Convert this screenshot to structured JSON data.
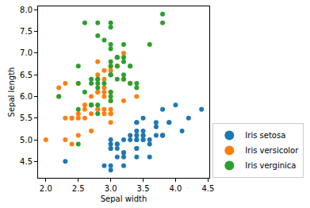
{
  "chart_data": {
    "type": "scatter",
    "x_label": "Sepal width",
    "y_label": "Sepal length",
    "xlim": [
      1.88,
      4.52
    ],
    "ylim": [
      4.12,
      8.08
    ],
    "xticks": [
      {
        "value": 2,
        "label": "2.0"
      },
      2.5,
      {
        "value": 3,
        "label": "3.0"
      },
      3.5,
      {
        "value": 4,
        "label": "4.0"
      },
      4.5
    ],
    "yticks": [
      4.5,
      {
        "value": 5,
        "label": "5.0"
      },
      5.5,
      {
        "value": 6,
        "label": "6.0"
      },
      6.5,
      {
        "value": 7,
        "label": "7.0"
      },
      7.5,
      {
        "value": 8,
        "label": "8.0"
      }
    ],
    "grid": false,
    "legend": "lower right",
    "marker": "circle",
    "series": [
      {
        "name": "Iris setosa",
        "color": "#1f77b4",
        "x": [
          3.5,
          3.0,
          3.2,
          3.1,
          3.6,
          3.9,
          3.4,
          3.4,
          2.9,
          3.1,
          3.7,
          3.4,
          3.0,
          3.0,
          4.0,
          4.4,
          3.9,
          3.5,
          3.8,
          3.8,
          3.4,
          3.7,
          3.6,
          3.3,
          3.4,
          3.0,
          3.4,
          3.5,
          3.4,
          3.2,
          3.1,
          3.4,
          4.1,
          4.2,
          3.1,
          3.2,
          3.5,
          3.6,
          3.0,
          3.4,
          3.5,
          2.3,
          3.2,
          3.5,
          3.8,
          3.0,
          3.8,
          3.2,
          3.7,
          3.3
        ],
        "values": [
          5.1,
          4.9,
          4.7,
          4.6,
          5.0,
          5.4,
          4.6,
          5.0,
          4.4,
          4.9,
          5.4,
          4.8,
          4.8,
          4.3,
          5.8,
          5.7,
          5.4,
          5.1,
          5.7,
          5.1,
          5.4,
          5.1,
          4.6,
          5.1,
          4.8,
          5.0,
          5.0,
          5.2,
          5.2,
          4.7,
          4.8,
          5.4,
          5.2,
          5.5,
          4.9,
          5.0,
          5.5,
          4.9,
          4.4,
          5.1,
          5.0,
          4.5,
          4.4,
          5.0,
          5.1,
          4.8,
          5.1,
          4.6,
          5.3,
          5.0
        ]
      },
      {
        "name": "Iris versicolor",
        "color": "#ff7f0e",
        "x": [
          3.2,
          3.2,
          3.1,
          2.3,
          2.8,
          2.8,
          3.3,
          2.4,
          2.9,
          2.7,
          2.0,
          3.0,
          2.2,
          2.9,
          2.9,
          3.1,
          3.0,
          2.7,
          2.2,
          2.5,
          3.2,
          2.8,
          2.5,
          2.8,
          2.9,
          3.0,
          2.8,
          3.0,
          2.9,
          2.6,
          2.4,
          2.4,
          2.7,
          2.7,
          3.0,
          3.4,
          3.1,
          2.3,
          3.0,
          2.5,
          2.6,
          3.0,
          2.6,
          2.3,
          2.7,
          3.0,
          2.9,
          2.9,
          2.5,
          2.8
        ],
        "values": [
          7.0,
          6.4,
          6.9,
          5.5,
          6.5,
          5.7,
          6.3,
          4.9,
          6.6,
          5.2,
          5.0,
          5.9,
          6.0,
          6.1,
          5.6,
          6.7,
          5.6,
          5.8,
          6.2,
          5.6,
          5.9,
          6.1,
          6.3,
          6.1,
          6.4,
          6.6,
          6.8,
          6.7,
          6.0,
          5.7,
          5.5,
          5.5,
          5.8,
          6.0,
          5.4,
          6.0,
          6.7,
          6.3,
          5.6,
          5.5,
          5.5,
          6.1,
          5.8,
          5.0,
          5.6,
          5.7,
          5.7,
          6.2,
          5.1,
          5.7
        ]
      },
      {
        "name": "Iris verginica",
        "color": "#2ca02c",
        "x": [
          3.3,
          2.7,
          3.0,
          2.9,
          3.0,
          3.0,
          2.5,
          2.9,
          2.5,
          3.6,
          3.2,
          2.7,
          3.0,
          2.5,
          2.8,
          3.2,
          3.0,
          3.8,
          2.6,
          2.2,
          3.2,
          2.8,
          2.8,
          2.7,
          3.3,
          3.2,
          2.8,
          3.0,
          2.8,
          3.0,
          2.8,
          3.8,
          2.8,
          2.8,
          2.6,
          3.0,
          3.4,
          3.1,
          3.0,
          3.1,
          3.1,
          3.1,
          2.7,
          3.2,
          3.3,
          3.0,
          2.5,
          3.0,
          3.4,
          3.0
        ],
        "values": [
          6.3,
          5.8,
          7.1,
          6.3,
          6.5,
          7.6,
          4.9,
          7.3,
          6.7,
          7.2,
          6.5,
          6.4,
          6.8,
          5.7,
          5.8,
          6.4,
          6.5,
          7.7,
          7.7,
          6.0,
          6.9,
          5.6,
          7.7,
          6.3,
          6.7,
          7.2,
          6.2,
          6.1,
          6.4,
          7.2,
          7.4,
          7.9,
          6.4,
          6.3,
          6.1,
          7.7,
          6.3,
          6.4,
          6.0,
          6.9,
          6.7,
          6.9,
          5.8,
          6.8,
          6.7,
          6.7,
          6.3,
          6.5,
          6.2,
          5.9
        ]
      }
    ]
  }
}
